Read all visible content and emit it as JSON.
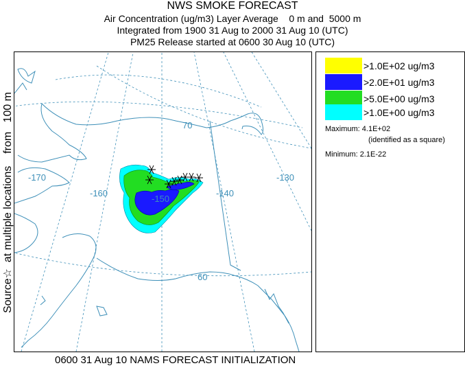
{
  "title": {
    "line1": "NWS SMOKE FORECAST",
    "line2": "Air Concentration (ug/m3) Layer Average    0 m and  5000 m",
    "line3": "Integrated from 1900 31 Aug to 2000 31 Aug 10 (UTC)",
    "line4": "PM25 Release started at 0600 30 Aug 10 (UTC)"
  },
  "side_label": "Source☆  at multiple locations    from   100 m",
  "footer": "0600 31 Aug 10 NAMS FORECAST INITIALIZATION",
  "legend": {
    "items": [
      {
        "label": ">1.0E+02 ug/m3",
        "color": "#ffff00"
      },
      {
        "label": ">2.0E+01 ug/m3",
        "color": "#1a1aff"
      },
      {
        "label": ">5.0E+00 ug/m3",
        "color": "#22dd22"
      },
      {
        "label": ">1.0E+00 ug/m3",
        "color": "#00ffff"
      }
    ],
    "maximum_label": "Maximum: 4.1E+02",
    "maximum_note": "(identified as a square)",
    "minimum_label": "Minimum: 2.1E-22"
  },
  "map": {
    "longitude_labels": [
      "-170",
      "-160",
      "-150",
      "-140",
      "-130"
    ],
    "latitude_labels": [
      "70",
      "60"
    ],
    "line_color": "#3d8fb8"
  }
}
